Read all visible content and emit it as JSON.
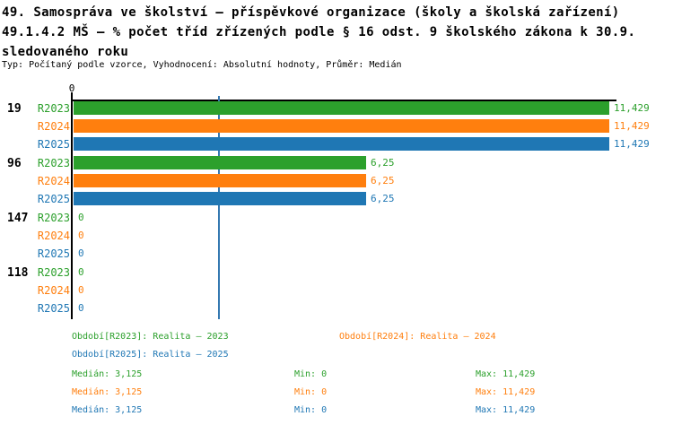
{
  "header": {
    "title_line1": "49. Samospráva ve školství – příspěvkové organizace (školy a školská zařízení)",
    "title_line2": "49.1.4.2 MŠ – % počet tříd zřízených podle § 16 odst. 9 školského zákona k 30.9.",
    "title_line3": "sledovaného roku",
    "subtitle": "Typ: Počítaný podle vzorce, Vyhodnocení: Absolutní hodnoty, Průměr: Medián"
  },
  "colors": {
    "r2023": "#2ca02c",
    "r2024": "#ff7f0e",
    "r2025": "#1f77b4",
    "median_line": "#3579b1",
    "axis": "#000000"
  },
  "chart_data": {
    "type": "bar",
    "orientation": "horizontal",
    "axis_zero_label": "0",
    "xlim": [
      0,
      11.429
    ],
    "median_line_value": 3.125,
    "grid": false,
    "series_names": [
      "R2023",
      "R2024",
      "R2025"
    ],
    "series_color_keys": [
      "r2023",
      "r2024",
      "r2025"
    ],
    "groups": [
      {
        "label": "19",
        "values": [
          11.429,
          11.429,
          11.429
        ],
        "value_labels": [
          "11,429",
          "11,429",
          "11,429"
        ]
      },
      {
        "label": "96",
        "values": [
          6.25,
          6.25,
          6.25
        ],
        "value_labels": [
          "6,25",
          "6,25",
          "6,25"
        ]
      },
      {
        "label": "147",
        "values": [
          0,
          0,
          0
        ],
        "value_labels": [
          "0",
          "0",
          "0"
        ]
      },
      {
        "label": "118",
        "values": [
          0,
          0,
          0
        ],
        "value_labels": [
          "0",
          "0",
          "0"
        ]
      }
    ]
  },
  "legend": {
    "items": [
      {
        "label": "Období[R2023]: Realita – 2023",
        "color_key": "r2023"
      },
      {
        "label": "Období[R2024]: Realita – 2024",
        "color_key": "r2024"
      },
      {
        "label": "Období[R2025]: Realita – 2025",
        "color_key": "r2025"
      }
    ]
  },
  "stats": {
    "rows": [
      {
        "color_key": "r2023",
        "median": "Medián: 3,125",
        "min": "Min: 0",
        "max": "Max: 11,429"
      },
      {
        "color_key": "r2024",
        "median": "Medián: 3,125",
        "min": "Min: 0",
        "max": "Max: 11,429"
      },
      {
        "color_key": "r2025",
        "median": "Medián: 3,125",
        "min": "Min: 0",
        "max": "Max: 11,429"
      }
    ]
  }
}
